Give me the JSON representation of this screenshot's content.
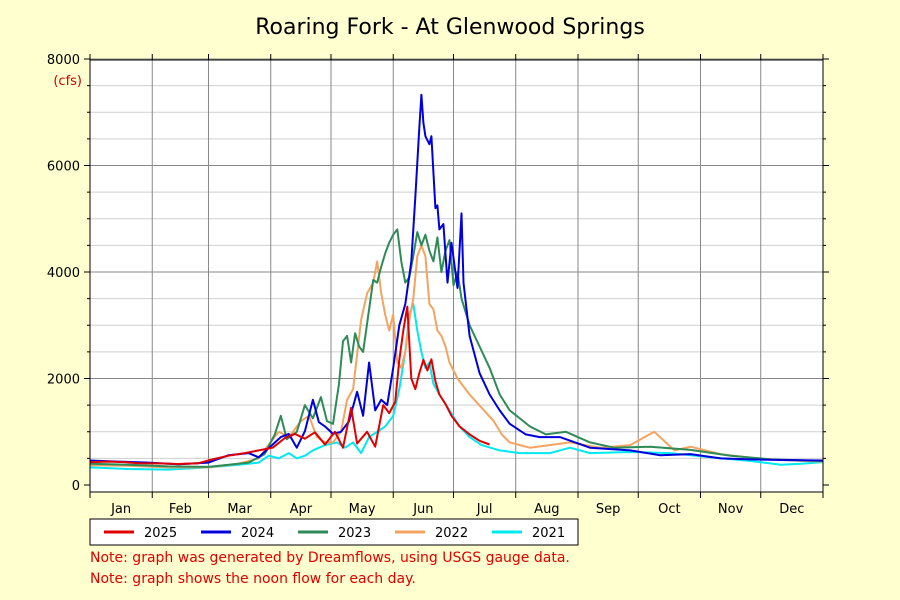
{
  "chart_data": {
    "type": "line",
    "title": "Roaring Fork - At Glenwood Springs",
    "ylabel": "(cfs)",
    "ylim": [
      0,
      8000
    ],
    "yticks": [
      0,
      2000,
      4000,
      6000,
      8000
    ],
    "grid": true,
    "legend_position": "bottom-left",
    "x_unit": "day of year",
    "xlim": [
      1,
      366
    ],
    "months": [
      "Jan",
      "Feb",
      "Mar",
      "Apr",
      "May",
      "Jun",
      "Jul",
      "Aug",
      "Sep",
      "Oct",
      "Nov",
      "Dec"
    ],
    "series": [
      {
        "name": "2025",
        "color": "#e00000",
        "points": [
          [
            1,
            430
          ],
          [
            10,
            440
          ],
          [
            18,
            430
          ],
          [
            25,
            410
          ],
          [
            35,
            405
          ],
          [
            45,
            395
          ],
          [
            55,
            410
          ],
          [
            62,
            480
          ],
          [
            70,
            550
          ],
          [
            78,
            600
          ],
          [
            85,
            650
          ],
          [
            92,
            700
          ],
          [
            98,
            880
          ],
          [
            103,
            960
          ],
          [
            108,
            870
          ],
          [
            113,
            990
          ],
          [
            118,
            760
          ],
          [
            123,
            1000
          ],
          [
            127,
            700
          ],
          [
            131,
            1450
          ],
          [
            134,
            780
          ],
          [
            139,
            1000
          ],
          [
            143,
            720
          ],
          [
            147,
            1500
          ],
          [
            150,
            1350
          ],
          [
            153,
            1560
          ],
          [
            155,
            2350
          ],
          [
            157,
            2900
          ],
          [
            159,
            3350
          ],
          [
            161,
            2000
          ],
          [
            163,
            1800
          ],
          [
            165,
            2100
          ],
          [
            167,
            2350
          ],
          [
            169,
            2150
          ],
          [
            171,
            2360
          ],
          [
            173,
            1950
          ],
          [
            175,
            1700
          ],
          [
            178,
            1520
          ],
          [
            181,
            1300
          ],
          [
            185,
            1100
          ],
          [
            190,
            950
          ],
          [
            195,
            830
          ],
          [
            200,
            760
          ]
        ]
      },
      {
        "name": "2024",
        "color": "#0000dd",
        "points": [
          [
            1,
            460
          ],
          [
            15,
            440
          ],
          [
            30,
            420
          ],
          [
            45,
            390
          ],
          [
            60,
            420
          ],
          [
            70,
            560
          ],
          [
            80,
            600
          ],
          [
            85,
            520
          ],
          [
            92,
            760
          ],
          [
            96,
            900
          ],
          [
            100,
            960
          ],
          [
            104,
            700
          ],
          [
            108,
            1010
          ],
          [
            112,
            1600
          ],
          [
            115,
            1180
          ],
          [
            118,
            1100
          ],
          [
            122,
            960
          ],
          [
            126,
            1000
          ],
          [
            130,
            1200
          ],
          [
            134,
            1750
          ],
          [
            137,
            1300
          ],
          [
            140,
            2300
          ],
          [
            143,
            1400
          ],
          [
            146,
            1600
          ],
          [
            149,
            1500
          ],
          [
            152,
            2200
          ],
          [
            155,
            3000
          ],
          [
            158,
            3400
          ],
          [
            161,
            4200
          ],
          [
            163,
            5400
          ],
          [
            165,
            6700
          ],
          [
            166,
            7330
          ],
          [
            167,
            6800
          ],
          [
            168,
            6550
          ],
          [
            170,
            6400
          ],
          [
            171,
            6550
          ],
          [
            173,
            5200
          ],
          [
            174,
            5250
          ],
          [
            175,
            4800
          ],
          [
            177,
            4900
          ],
          [
            179,
            3800
          ],
          [
            181,
            4550
          ],
          [
            184,
            3700
          ],
          [
            186,
            5100
          ],
          [
            187,
            3800
          ],
          [
            190,
            2800
          ],
          [
            195,
            2100
          ],
          [
            200,
            1700
          ],
          [
            205,
            1400
          ],
          [
            210,
            1150
          ],
          [
            218,
            950
          ],
          [
            225,
            900
          ],
          [
            235,
            900
          ],
          [
            250,
            700
          ],
          [
            270,
            650
          ],
          [
            285,
            560
          ],
          [
            300,
            580
          ],
          [
            315,
            500
          ],
          [
            330,
            480
          ],
          [
            345,
            470
          ],
          [
            366,
            460
          ]
        ]
      },
      {
        "name": "2023",
        "color": "#2e8b57",
        "points": [
          [
            1,
            400
          ],
          [
            20,
            380
          ],
          [
            40,
            350
          ],
          [
            60,
            340
          ],
          [
            70,
            380
          ],
          [
            80,
            420
          ],
          [
            88,
            580
          ],
          [
            93,
            950
          ],
          [
            96,
            1300
          ],
          [
            99,
            860
          ],
          [
            104,
            1000
          ],
          [
            108,
            1500
          ],
          [
            112,
            1250
          ],
          [
            116,
            1650
          ],
          [
            119,
            1200
          ],
          [
            122,
            1150
          ],
          [
            125,
            1900
          ],
          [
            127,
            2700
          ],
          [
            129,
            2800
          ],
          [
            131,
            2300
          ],
          [
            133,
            2850
          ],
          [
            135,
            2600
          ],
          [
            137,
            2500
          ],
          [
            140,
            3300
          ],
          [
            142,
            3850
          ],
          [
            144,
            3800
          ],
          [
            146,
            4100
          ],
          [
            148,
            4350
          ],
          [
            150,
            4550
          ],
          [
            152,
            4700
          ],
          [
            154,
            4800
          ],
          [
            156,
            4200
          ],
          [
            158,
            3800
          ],
          [
            160,
            3900
          ],
          [
            162,
            4300
          ],
          [
            164,
            4750
          ],
          [
            166,
            4500
          ],
          [
            168,
            4700
          ],
          [
            170,
            4400
          ],
          [
            172,
            4200
          ],
          [
            174,
            4650
          ],
          [
            176,
            4000
          ],
          [
            178,
            4400
          ],
          [
            180,
            4600
          ],
          [
            182,
            3750
          ],
          [
            184,
            4000
          ],
          [
            186,
            3500
          ],
          [
            190,
            3000
          ],
          [
            195,
            2600
          ],
          [
            200,
            2200
          ],
          [
            205,
            1700
          ],
          [
            210,
            1400
          ],
          [
            215,
            1250
          ],
          [
            220,
            1100
          ],
          [
            228,
            950
          ],
          [
            238,
            1000
          ],
          [
            250,
            800
          ],
          [
            262,
            700
          ],
          [
            280,
            720
          ],
          [
            300,
            660
          ],
          [
            320,
            550
          ],
          [
            340,
            480
          ],
          [
            366,
            450
          ]
        ]
      },
      {
        "name": "2022",
        "color": "#f4a460",
        "points": [
          [
            1,
            370
          ],
          [
            20,
            360
          ],
          [
            40,
            330
          ],
          [
            60,
            330
          ],
          [
            75,
            400
          ],
          [
            85,
            500
          ],
          [
            90,
            760
          ],
          [
            95,
            1000
          ],
          [
            100,
            900
          ],
          [
            106,
            1200
          ],
          [
            110,
            1300
          ],
          [
            114,
            900
          ],
          [
            118,
            800
          ],
          [
            122,
            800
          ],
          [
            126,
            1000
          ],
          [
            129,
            1600
          ],
          [
            132,
            1800
          ],
          [
            136,
            3100
          ],
          [
            139,
            3600
          ],
          [
            142,
            3800
          ],
          [
            144,
            4200
          ],
          [
            146,
            3600
          ],
          [
            148,
            3200
          ],
          [
            150,
            2900
          ],
          [
            152,
            3200
          ],
          [
            154,
            2300
          ],
          [
            156,
            2200
          ],
          [
            158,
            2500
          ],
          [
            160,
            3100
          ],
          [
            162,
            3500
          ],
          [
            164,
            4300
          ],
          [
            166,
            4500
          ],
          [
            168,
            4300
          ],
          [
            170,
            3400
          ],
          [
            172,
            3300
          ],
          [
            174,
            2900
          ],
          [
            176,
            2800
          ],
          [
            178,
            2600
          ],
          [
            180,
            2300
          ],
          [
            184,
            2000
          ],
          [
            190,
            1700
          ],
          [
            196,
            1450
          ],
          [
            202,
            1200
          ],
          [
            206,
            950
          ],
          [
            210,
            800
          ],
          [
            220,
            700
          ],
          [
            240,
            800
          ],
          [
            255,
            700
          ],
          [
            270,
            750
          ],
          [
            282,
            1000
          ],
          [
            292,
            650
          ],
          [
            300,
            720
          ],
          [
            315,
            580
          ],
          [
            330,
            510
          ],
          [
            345,
            470
          ],
          [
            366,
            440
          ]
        ]
      },
      {
        "name": "2021",
        "color": "#00e8f0",
        "points": [
          [
            1,
            330
          ],
          [
            20,
            300
          ],
          [
            40,
            290
          ],
          [
            60,
            330
          ],
          [
            75,
            380
          ],
          [
            85,
            420
          ],
          [
            90,
            550
          ],
          [
            95,
            500
          ],
          [
            100,
            600
          ],
          [
            104,
            500
          ],
          [
            108,
            550
          ],
          [
            112,
            650
          ],
          [
            118,
            750
          ],
          [
            124,
            800
          ],
          [
            128,
            700
          ],
          [
            132,
            800
          ],
          [
            136,
            600
          ],
          [
            140,
            900
          ],
          [
            144,
            1000
          ],
          [
            148,
            1100
          ],
          [
            152,
            1300
          ],
          [
            155,
            1800
          ],
          [
            158,
            2500
          ],
          [
            160,
            3200
          ],
          [
            162,
            3400
          ],
          [
            164,
            2900
          ],
          [
            166,
            2500
          ],
          [
            168,
            2200
          ],
          [
            170,
            2300
          ],
          [
            172,
            1900
          ],
          [
            175,
            1700
          ],
          [
            180,
            1400
          ],
          [
            185,
            1100
          ],
          [
            190,
            900
          ],
          [
            196,
            750
          ],
          [
            205,
            650
          ],
          [
            215,
            600
          ],
          [
            230,
            600
          ],
          [
            240,
            700
          ],
          [
            250,
            600
          ],
          [
            270,
            620
          ],
          [
            290,
            600
          ],
          [
            310,
            520
          ],
          [
            330,
            450
          ],
          [
            345,
            380
          ],
          [
            355,
            400
          ],
          [
            366,
            430
          ]
        ]
      }
    ],
    "notes": [
      "Note: graph was generated by Dreamflows, using USGS gauge data.",
      "Note: graph shows the noon flow for each day."
    ]
  }
}
